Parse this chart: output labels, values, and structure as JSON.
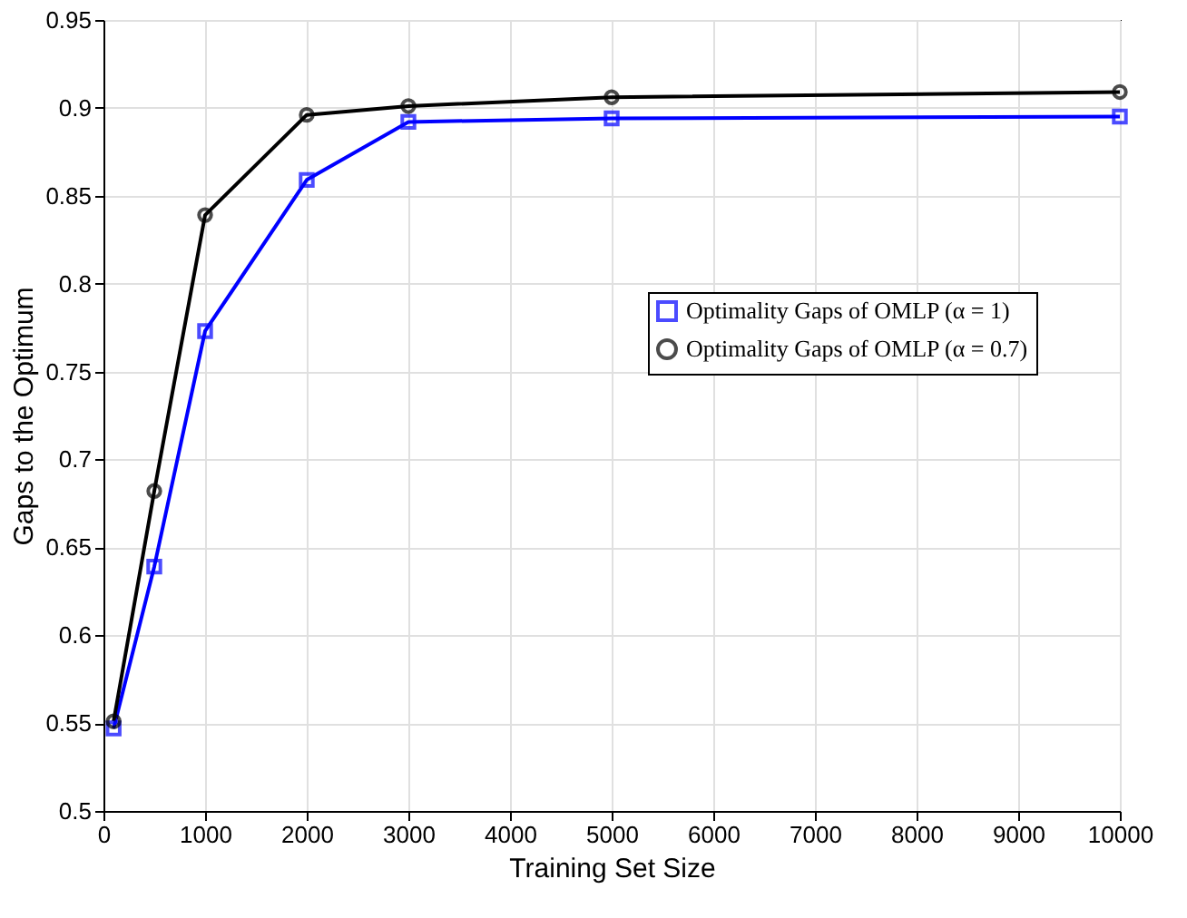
{
  "chart_data": {
    "type": "line",
    "xlabel": "Training Set Size",
    "ylabel": "Gaps to the Optimum",
    "x": [
      100,
      500,
      1000,
      2000,
      3000,
      5000,
      10000
    ],
    "series": [
      {
        "name": "Optimality Gaps of OMLP (α = 1)",
        "color": "#0000ff",
        "marker": "square",
        "values": [
          0.547,
          0.639,
          0.773,
          0.859,
          0.892,
          0.894,
          0.895
        ]
      },
      {
        "name": "Optimality Gaps of OMLP (α = 0.7)",
        "color": "#000000",
        "marker": "circle",
        "values": [
          0.551,
          0.682,
          0.839,
          0.896,
          0.901,
          0.906,
          0.909
        ]
      }
    ],
    "xlim": [
      0,
      10000
    ],
    "xticks": [
      0,
      1000,
      2000,
      3000,
      4000,
      5000,
      6000,
      7000,
      8000,
      9000,
      10000
    ],
    "ylim": [
      0.5,
      0.95
    ],
    "yticks": [
      0.5,
      0.55,
      0.6,
      0.65,
      0.7,
      0.75,
      0.8,
      0.85,
      0.9,
      0.95
    ],
    "grid": true,
    "legend": "right",
    "line_style": "solid"
  }
}
